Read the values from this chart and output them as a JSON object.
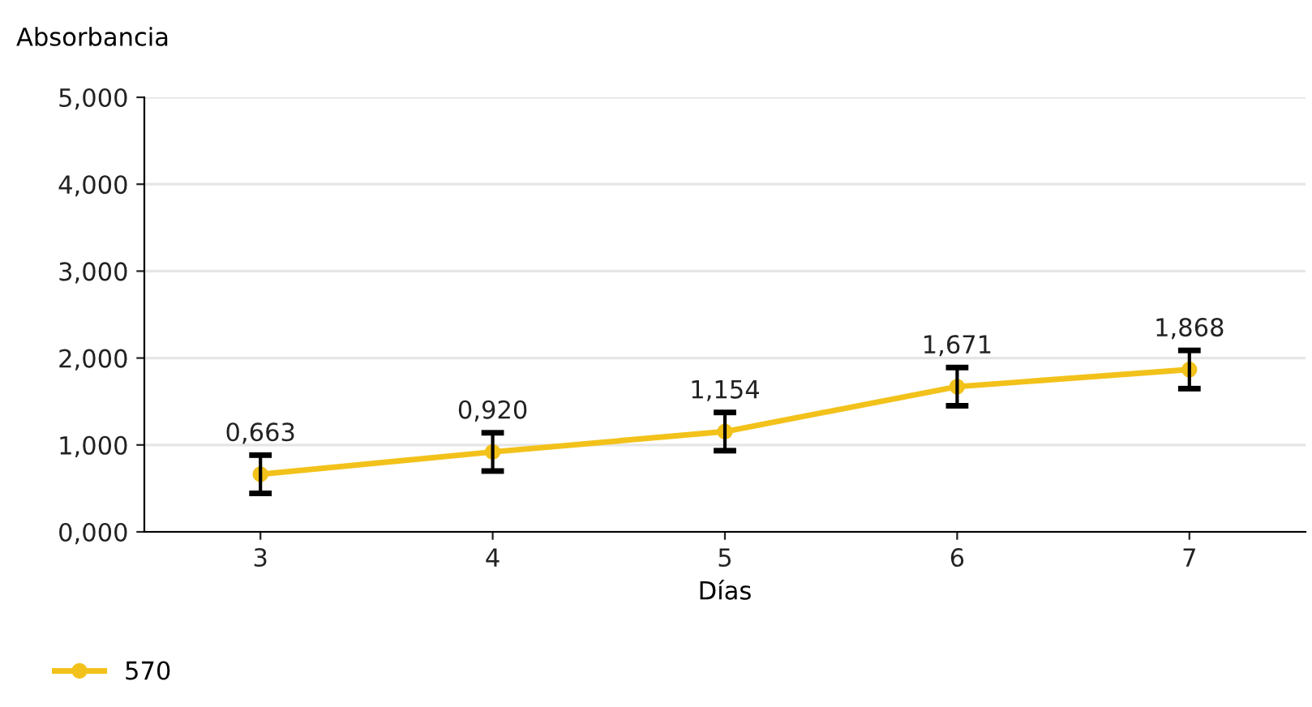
{
  "chart_data": {
    "type": "line",
    "ylabel": "Absorbancia",
    "xlabel": "Días",
    "categories": [
      "3",
      "4",
      "5",
      "6",
      "7"
    ],
    "series": [
      {
        "name": "570",
        "color": "#f2c21b",
        "values": [
          0.663,
          0.92,
          1.154,
          1.671,
          1.868
        ],
        "errors": [
          0.22,
          0.22,
          0.22,
          0.22,
          0.22
        ],
        "value_labels": [
          "0,663",
          "0,920",
          "1,154",
          "1,671",
          "1,868"
        ]
      }
    ],
    "ylim": [
      0,
      5
    ],
    "yticks": [
      {
        "value": 0,
        "label": "0,000"
      },
      {
        "value": 1,
        "label": "1,000"
      },
      {
        "value": 2,
        "label": "2,000"
      },
      {
        "value": 3,
        "label": "3,000"
      },
      {
        "value": 4,
        "label": "4,000"
      },
      {
        "value": 5,
        "label": "5,000"
      }
    ],
    "grid": "y",
    "legend": "bottom left",
    "marker": "circle",
    "line_style": "solid"
  }
}
